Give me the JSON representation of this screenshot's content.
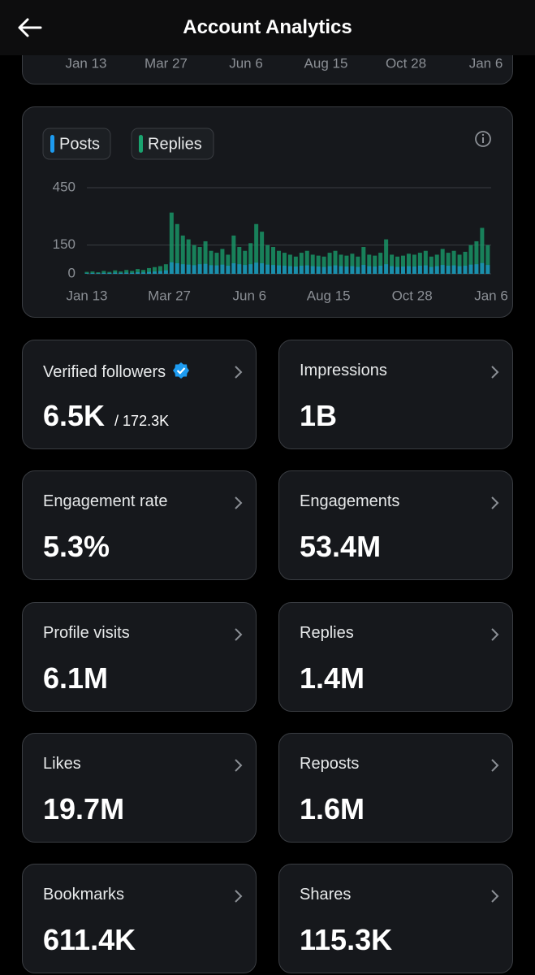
{
  "header": {
    "title": "Account Analytics"
  },
  "top_chart_axis": [
    "Jan 13",
    "Mar 27",
    "Jun 6",
    "Aug 15",
    "Oct 28",
    "Jan 6"
  ],
  "chart_data": {
    "type": "bar",
    "legend": [
      "Posts",
      "Replies"
    ],
    "x": [
      0,
      5,
      10,
      15,
      20,
      25,
      30,
      35,
      40,
      45,
      50,
      55,
      60,
      65,
      70,
      75,
      80,
      85,
      90,
      95,
      100,
      105,
      110,
      115,
      120,
      125,
      130,
      135,
      140,
      145,
      150,
      155,
      160,
      165,
      170,
      175,
      180,
      185,
      190,
      195,
      200,
      205,
      210,
      215,
      220,
      225,
      230,
      235,
      240,
      245,
      250,
      255,
      260,
      265,
      270,
      275,
      280,
      285,
      290,
      295,
      300,
      305,
      310,
      315,
      320,
      325,
      330,
      335,
      340,
      345,
      350,
      355
    ],
    "xlim": [
      0,
      358
    ],
    "xticks": [
      {
        "value": 0,
        "label": "Jan 13"
      },
      {
        "value": 73,
        "label": "Mar 27"
      },
      {
        "value": 144,
        "label": "Jun 6"
      },
      {
        "value": 214,
        "label": "Aug 15"
      },
      {
        "value": 288,
        "label": "Oct 28"
      },
      {
        "value": 358,
        "label": "Jan 6"
      }
    ],
    "ylim": [
      0,
      450
    ],
    "yticks": [
      0,
      150,
      450
    ],
    "grid": true,
    "series": [
      {
        "name": "Replies",
        "color": "#1aa36f",
        "values": [
          10,
          12,
          8,
          15,
          10,
          18,
          12,
          20,
          15,
          25,
          20,
          30,
          35,
          40,
          50,
          320,
          260,
          200,
          180,
          150,
          140,
          170,
          120,
          110,
          130,
          100,
          200,
          140,
          120,
          160,
          260,
          220,
          150,
          140,
          120,
          110,
          100,
          90,
          110,
          120,
          100,
          95,
          90,
          110,
          120,
          100,
          95,
          105,
          90,
          140,
          100,
          95,
          110,
          180,
          100,
          90,
          95,
          105,
          100,
          110,
          120,
          90,
          100,
          130,
          110,
          120,
          100,
          115,
          150,
          170,
          240,
          150
        ]
      },
      {
        "name": "Posts",
        "color": "#1d9bf0",
        "values": [
          3,
          4,
          3,
          5,
          4,
          6,
          5,
          6,
          5,
          8,
          7,
          10,
          12,
          14,
          18,
          60,
          55,
          50,
          48,
          45,
          50,
          52,
          45,
          44,
          48,
          42,
          55,
          50,
          46,
          50,
          58,
          55,
          48,
          46,
          44,
          42,
          40,
          38,
          42,
          44,
          40,
          38,
          36,
          40,
          44,
          40,
          38,
          40,
          36,
          46,
          40,
          38,
          42,
          50,
          40,
          36,
          38,
          40,
          38,
          42,
          44,
          36,
          40,
          46,
          42,
          44,
          40,
          42,
          48,
          50,
          56,
          46
        ]
      }
    ]
  },
  "metrics": [
    {
      "label": "Verified followers",
      "value": "6.5K",
      "sub": "/ 172.3K"
    },
    {
      "label": "Impressions",
      "value": "1B"
    },
    {
      "label": "Engagement rate",
      "value": "5.3%"
    },
    {
      "label": "Engagements",
      "value": "53.4M"
    },
    {
      "label": "Profile visits",
      "value": "6.1M"
    },
    {
      "label": "Replies",
      "value": "1.4M"
    },
    {
      "label": "Likes",
      "value": "19.7M"
    },
    {
      "label": "Reposts",
      "value": "1.6M"
    },
    {
      "label": "Bookmarks",
      "value": "611.4K"
    },
    {
      "label": "Shares",
      "value": "115.3K"
    }
  ]
}
